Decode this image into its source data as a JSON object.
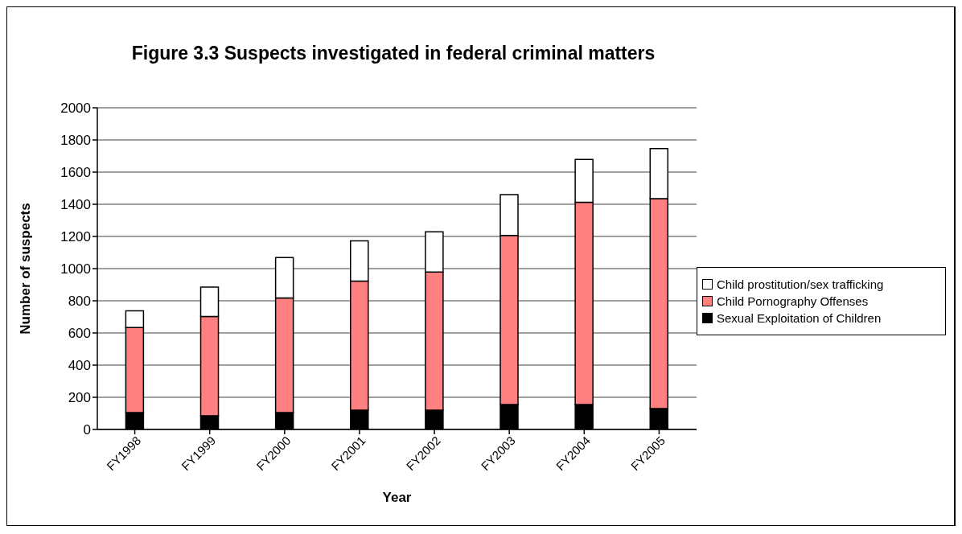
{
  "chart_data": {
    "type": "bar",
    "title": "Figure 3.3  Suspects investigated in federal criminal matters",
    "xlabel": "Year",
    "ylabel": "Number of suspects",
    "categories": [
      "FY1998",
      "FY1999",
      "FY2000",
      "FY2001",
      "FY2002",
      "FY2003",
      "FY2004",
      "FY2005"
    ],
    "series": [
      {
        "name": "Sexual Exploitation of Children",
        "color": "#000000",
        "values": [
          105,
          85,
          105,
          120,
          120,
          155,
          155,
          130
        ]
      },
      {
        "name": "Child Pornography Offenses",
        "color": "#ff8080",
        "values": [
          529,
          617,
          712,
          802,
          859,
          1051,
          1257,
          1305
        ]
      },
      {
        "name": "Child prostitution/sex trafficking",
        "color": "#ffffff",
        "values": [
          103,
          183,
          252,
          250,
          250,
          254,
          267,
          311
        ]
      }
    ],
    "stacked": true,
    "ylim": [
      0,
      2000
    ],
    "yticks": [
      0,
      200,
      400,
      600,
      800,
      1000,
      1200,
      1400,
      1600,
      1800,
      2000
    ],
    "grid": "y",
    "legend": "right"
  }
}
